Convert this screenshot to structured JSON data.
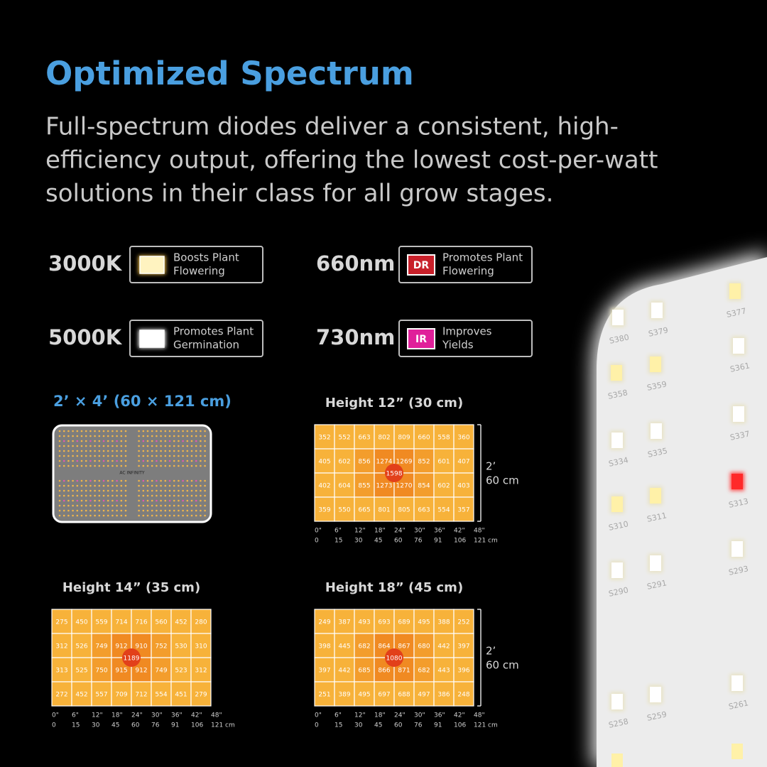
{
  "header": {
    "title": "Optimized Spectrum",
    "description": [
      "Full-spectrum diodes deliver a consistent, high-",
      "efficiency output, offering the lowest cost-per-watt",
      "solutions in their class for all grow stages."
    ]
  },
  "spectrum": [
    {
      "label": "3000K",
      "text": [
        "Boosts Plant",
        "Flowering"
      ]
    },
    {
      "label": "660nm",
      "badge": "DR",
      "text": [
        "Promotes Plant",
        "Flowering"
      ]
    },
    {
      "label": "5000K",
      "text": [
        "Promotes Plant",
        "Germination"
      ]
    },
    {
      "label": "730nm",
      "badge": "IR",
      "text": [
        "Improves",
        "Yields"
      ]
    }
  ],
  "panel": {
    "size": "2’ × 4’ (60 × 121 cm)",
    "logo": "AC INFINITY"
  },
  "maps": [
    {
      "title": "Height 12” (30 cm)",
      "center": "1598",
      "side": [
        "2’",
        "60 cm"
      ],
      "rows": [
        [
          "352",
          "552",
          "663",
          "802",
          "809",
          "660",
          "558",
          "360"
        ],
        [
          "405",
          "602",
          "856",
          "1274",
          "1269",
          "852",
          "601",
          "407"
        ],
        [
          "402",
          "604",
          "855",
          "1273",
          "1270",
          "854",
          "602",
          "403"
        ],
        [
          "359",
          "550",
          "665",
          "801",
          "805",
          "663",
          "554",
          "357"
        ]
      ],
      "inches": [
        "0\"",
        "6\"",
        "12\"",
        "18\"",
        "24\"",
        "30\"",
        "36\"",
        "42\"",
        "48\""
      ],
      "cm": [
        "0",
        "15",
        "30",
        "45",
        "60",
        "76",
        "91",
        "106",
        "121 cm"
      ]
    },
    {
      "title": "Height 14” (35 cm)",
      "center": "1189",
      "rows": [
        [
          "275",
          "450",
          "559",
          "714",
          "716",
          "560",
          "452",
          "280"
        ],
        [
          "312",
          "526",
          "749",
          "912",
          "910",
          "752",
          "530",
          "310"
        ],
        [
          "313",
          "525",
          "750",
          "915",
          "912",
          "749",
          "523",
          "312"
        ],
        [
          "272",
          "452",
          "557",
          "709",
          "712",
          "554",
          "451",
          "279"
        ]
      ],
      "inches": [
        "0\"",
        "6\"",
        "12\"",
        "18\"",
        "24\"",
        "30\"",
        "36\"",
        "42\"",
        "48\""
      ],
      "cm": [
        "0",
        "15",
        "30",
        "45",
        "60",
        "76",
        "91",
        "106",
        "121 cm"
      ]
    },
    {
      "title": "Height 18” (45 cm)",
      "center": "1080",
      "side": [
        "2’",
        "60 cm"
      ],
      "rows": [
        [
          "249",
          "387",
          "493",
          "693",
          "689",
          "495",
          "388",
          "252"
        ],
        [
          "398",
          "445",
          "682",
          "864",
          "867",
          "680",
          "442",
          "397"
        ],
        [
          "397",
          "442",
          "685",
          "866",
          "871",
          "682",
          "443",
          "396"
        ],
        [
          "251",
          "389",
          "495",
          "697",
          "688",
          "497",
          "386",
          "248"
        ]
      ],
      "inches": [
        "0\"",
        "6\"",
        "12\"",
        "18\"",
        "24\"",
        "30\"",
        "36\"",
        "42\"",
        "48\""
      ],
      "cm": [
        "0",
        "15",
        "30",
        "45",
        "60",
        "76",
        "91",
        "106",
        "121 cm"
      ]
    }
  ],
  "light_board": {
    "labels": [
      "S377",
      "S380",
      "S379",
      "S361",
      "S358",
      "S359",
      "S337",
      "S334",
      "S335",
      "S313",
      "S310",
      "S311",
      "S293",
      "S290",
      "S291",
      "S261",
      "S258",
      "S259"
    ]
  }
}
